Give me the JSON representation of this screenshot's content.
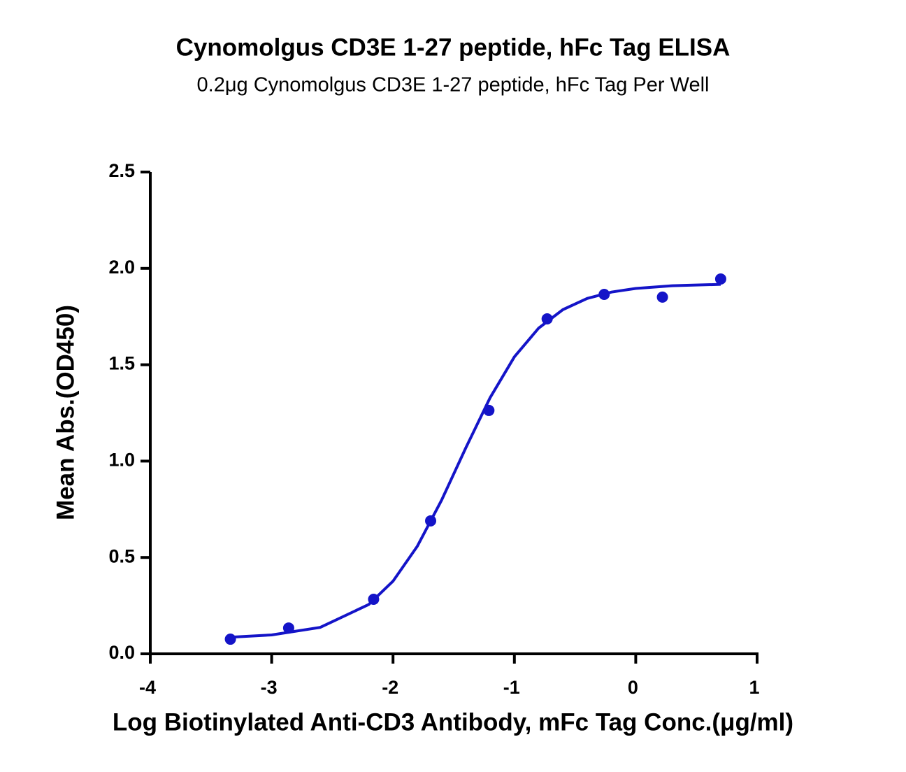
{
  "chart_data": {
    "type": "scatter",
    "title": "Cynomolgus CD3E 1-27 peptide, hFc Tag ELISA",
    "subtitle": "0.2μg Cynomolgus CD3E 1-27 peptide, hFc Tag Per Well",
    "x_label": "Log Biotinylated Anti-CD3 Antibody, mFc Tag Conc.(μg/ml)",
    "y_label": "Mean Abs.(OD450)",
    "xlim": [
      -4,
      1
    ],
    "xticks": [
      -4,
      -3,
      -2,
      -1,
      0,
      1
    ],
    "ylim": [
      0,
      2.5
    ],
    "yticks": [
      {
        "value": 0,
        "label": "0.0"
      },
      0.5,
      {
        "value": 1,
        "label": "1.0"
      },
      1.5,
      {
        "value": 2,
        "label": "2.0"
      },
      2.5
    ],
    "series": [
      {
        "type": "scatter",
        "color": "#1414c8",
        "x": [
          -3.34,
          -2.86,
          -2.16,
          -1.69,
          -1.21,
          -0.73,
          -0.26,
          0.22,
          0.7
        ],
        "values": [
          0.076,
          0.134,
          0.283,
          0.69,
          1.263,
          1.738,
          1.865,
          1.851,
          1.945
        ]
      },
      {
        "type": "line",
        "color": "#1414c8",
        "x": [
          -3.34,
          -3.0,
          -2.6,
          -2.2,
          -2.0,
          -1.8,
          -1.6,
          -1.4,
          -1.2,
          -1.0,
          -0.8,
          -0.6,
          -0.4,
          -0.2,
          0,
          0.3,
          0.7
        ],
        "values": [
          0.086,
          0.098,
          0.137,
          0.256,
          0.377,
          0.558,
          0.797,
          1.069,
          1.329,
          1.541,
          1.69,
          1.786,
          1.844,
          1.877,
          1.896,
          1.91,
          1.917
        ]
      }
    ]
  }
}
